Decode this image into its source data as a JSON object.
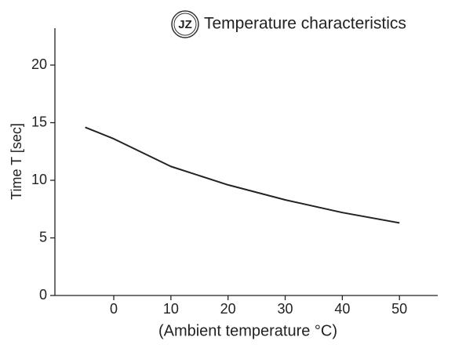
{
  "chart_data": {
    "type": "line",
    "title": "Temperature characteristics",
    "logo": "JZ",
    "x_label": "(Ambient temperature °C)",
    "y_label": "Time T [sec]",
    "x": [
      -5,
      0,
      10,
      20,
      30,
      40,
      50
    ],
    "series": [
      {
        "color": "#222222",
        "values": [
          14.6,
          13.6,
          11.2,
          9.6,
          8.3,
          7.2,
          6.3
        ]
      }
    ],
    "xlim": [
      -10.3,
      56.7
    ],
    "xticks": [
      0,
      10,
      20,
      30,
      40,
      50
    ],
    "ylim": [
      0,
      23.2
    ],
    "yticks": [
      0,
      5,
      10,
      15,
      20
    ]
  }
}
